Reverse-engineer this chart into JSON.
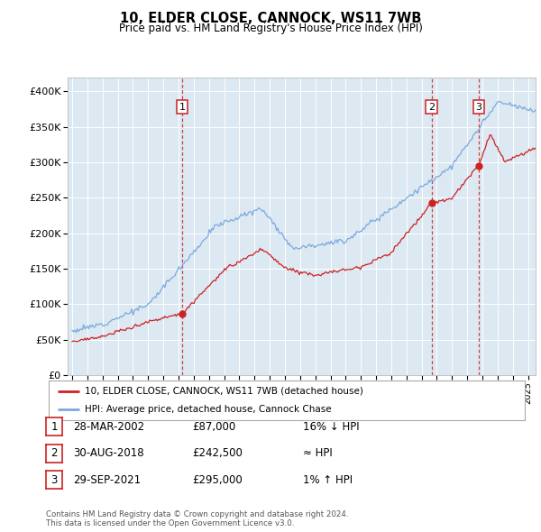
{
  "title": "10, ELDER CLOSE, CANNOCK, WS11 7WB",
  "subtitle": "Price paid vs. HM Land Registry's House Price Index (HPI)",
  "hpi_color": "#7aaadd",
  "price_color": "#cc2222",
  "bg_color": "#dce8f2",
  "grid_color": "#ffffff",
  "annotation_box_color": "#cc2222",
  "ylim": [
    0,
    420000
  ],
  "yticks": [
    0,
    50000,
    100000,
    150000,
    200000,
    250000,
    300000,
    350000,
    400000
  ],
  "ytick_labels": [
    "£0",
    "£50K",
    "£100K",
    "£150K",
    "£200K",
    "£250K",
    "£300K",
    "£350K",
    "£400K"
  ],
  "xlim_start": 1994.7,
  "xlim_end": 2025.5,
  "sales": [
    {
      "date_num": 2002.24,
      "price": 87000,
      "label": "1"
    },
    {
      "date_num": 2018.66,
      "price": 242500,
      "label": "2"
    },
    {
      "date_num": 2021.75,
      "price": 295000,
      "label": "3"
    }
  ],
  "legend_entries": [
    {
      "label": "10, ELDER CLOSE, CANNOCK, WS11 7WB (detached house)",
      "color": "#cc2222"
    },
    {
      "label": "HPI: Average price, detached house, Cannock Chase",
      "color": "#7aaadd"
    }
  ],
  "table_rows": [
    {
      "num": "1",
      "date": "28-MAR-2002",
      "price": "£87,000",
      "vs_hpi": "16% ↓ HPI"
    },
    {
      "num": "2",
      "date": "30-AUG-2018",
      "price": "£242,500",
      "vs_hpi": "≈ HPI"
    },
    {
      "num": "3",
      "date": "29-SEP-2021",
      "price": "£295,000",
      "vs_hpi": "1% ↑ HPI"
    }
  ],
  "footnote": "Contains HM Land Registry data © Crown copyright and database right 2024.\nThis data is licensed under the Open Government Licence v3.0."
}
